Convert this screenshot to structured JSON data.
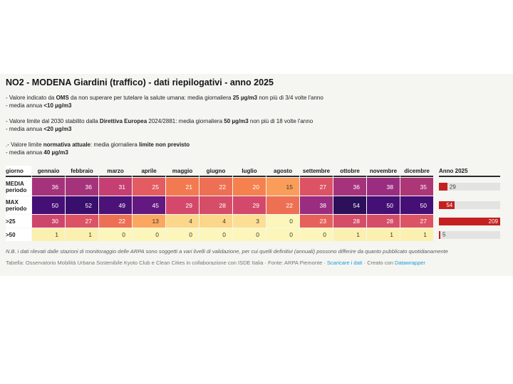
{
  "header": {
    "title": "NO2 - MODENA Giardini (traffico) - dati riepilogativi - anno 2025"
  },
  "notes": [
    {
      "lines": [
        [
          {
            "t": "- Valore indicato da "
          },
          {
            "t": "OMS",
            "b": 1
          },
          {
            "t": " da non superare per tutelare la salute umana: media giornaliera "
          },
          {
            "t": "25 µg/m3",
            "b": 1
          },
          {
            "t": " non più di 3/4 volte l'anno"
          }
        ],
        [
          {
            "t": "- media annua "
          },
          {
            "t": "<10 µg/m3",
            "b": 1
          }
        ]
      ]
    },
    {
      "lines": [
        [
          {
            "t": "- Valore limite dal 2030 stabilito dalla "
          },
          {
            "t": "Direttiva Europea",
            "b": 1
          },
          {
            "t": " 2024/2881: media giornaliera "
          },
          {
            "t": "50 µg/m3",
            "b": 1
          },
          {
            "t": " non più di 18 volte l'anno"
          }
        ],
        [
          {
            "t": "- media annua "
          },
          {
            "t": "<20 µg/m3",
            "b": 1
          }
        ]
      ]
    },
    {
      "lines": [
        [
          {
            "t": ".- Valore limite "
          },
          {
            "t": "normativa attuale",
            "b": 1
          },
          {
            "t": ": media giornaliera "
          },
          {
            "t": "limite non previsto",
            "b": 1
          }
        ],
        [
          {
            "t": "- media annua "
          },
          {
            "t": "40 µg/m3",
            "b": 1
          }
        ]
      ]
    }
  ],
  "table": {
    "corner_label": "giorno",
    "columns": [
      "gennaio",
      "febbraio",
      "marzo",
      "aprile",
      "maggio",
      "giugno",
      "luglio",
      "agosto",
      "settembre",
      "ottobre",
      "novembre",
      "dicembre"
    ],
    "year_column": "Anno 2025",
    "rows": [
      {
        "label_lines": [
          "MEDIA",
          "periodo"
        ],
        "values": [
          36,
          36,
          31,
          25,
          21,
          22,
          20,
          15,
          27,
          36,
          38,
          35
        ],
        "year": 29
      },
      {
        "label_lines": [
          "MAX",
          "periodo"
        ],
        "values": [
          50,
          52,
          49,
          45,
          29,
          28,
          29,
          22,
          38,
          54,
          50,
          50
        ],
        "year": 54
      },
      {
        "label_lines": [
          ">25"
        ],
        "values": [
          30,
          27,
          22,
          13,
          4,
          4,
          3,
          0,
          23,
          28,
          28,
          27
        ],
        "year": 209
      },
      {
        "label_lines": [
          ">50"
        ],
        "values": [
          1,
          1,
          0,
          0,
          0,
          0,
          0,
          0,
          0,
          1,
          1,
          1
        ],
        "year": 5
      }
    ]
  },
  "colors": {
    "page_bg": "#ffffff",
    "panel_bg": "#f5f5f2",
    "header_rule": "#2b2b2b",
    "bar_red": "#c4201f",
    "bar_track": "#e3e3e1",
    "cell_text_dark": "#3a3a3a",
    "cell_text_light": "#ffffff",
    "link_blue": "#1e9bd6",
    "light_text_min_value": 20,
    "scale": {
      "0": "#fcf6bb",
      "1": "#fbf0b0",
      "3": "#fcdf94",
      "4": "#fcd789",
      "13": "#fca75f",
      "15": "#fb9d5a",
      "20": "#f4814e",
      "21": "#f27a50",
      "22": "#ee7054",
      "23": "#e6615b",
      "25": "#e25c61",
      "27": "#dc5365",
      "28": "#d64d68",
      "29": "#d4496b",
      "30": "#cf466d",
      "31": "#c53f72",
      "35": "#ad3677",
      "36": "#a5337b",
      "38": "#9a2d80",
      "45": "#63197f",
      "49": "#4b1277",
      "50": "#451075",
      "52": "#390f6e",
      "54": "#2c1059"
    }
  },
  "footnote": "N.B. i dati rilevati dalle stazioni di monitoraggio delle ARPA sono soggetti a vari livelli di validazione, per cui quelli definitivi (annuali) possono differire da quanto pubblicato quotidianamente",
  "credits": {
    "segments": [
      {
        "t": "Tabella: Osservatorio Mobilità Urbana Sostenibile Kyoto Club e Clean Cities in collaborazione con ISDE Italia · Fonte: ARPA Piemonte · "
      },
      {
        "t": "Scaricare i dati",
        "link": 1,
        "name": "download-data-link"
      },
      {
        "t": " · Creato con "
      },
      {
        "t": "Datawrapper",
        "link": 1,
        "name": "datawrapper-link"
      }
    ]
  },
  "chart_data": {
    "type": "heatmap",
    "title": "NO2 - MODENA Giardini (traffico) - dati riepilogativi - anno 2025",
    "categories": [
      "gennaio",
      "febbraio",
      "marzo",
      "aprile",
      "maggio",
      "giugno",
      "luglio",
      "agosto",
      "settembre",
      "ottobre",
      "novembre",
      "dicembre"
    ],
    "series": [
      {
        "name": "MEDIA periodo",
        "values": [
          36,
          36,
          31,
          25,
          21,
          22,
          20,
          15,
          27,
          36,
          38,
          35
        ],
        "anno_2025": 29
      },
      {
        "name": "MAX periodo",
        "values": [
          50,
          52,
          49,
          45,
          29,
          28,
          29,
          22,
          38,
          54,
          50,
          50
        ],
        "anno_2025": 54
      },
      {
        "name": ">25",
        "values": [
          30,
          27,
          22,
          13,
          4,
          4,
          3,
          0,
          23,
          28,
          28,
          27
        ],
        "anno_2025": 209
      },
      {
        "name": ">50",
        "values": [
          1,
          1,
          0,
          0,
          0,
          0,
          0,
          0,
          0,
          1,
          1,
          1
        ],
        "anno_2025": 5
      }
    ],
    "year_bar_scale_max": 209,
    "color_ramp": "light yellow (low) to dark purple (high), magma reversed",
    "legend_position": "none",
    "grid": "off"
  }
}
